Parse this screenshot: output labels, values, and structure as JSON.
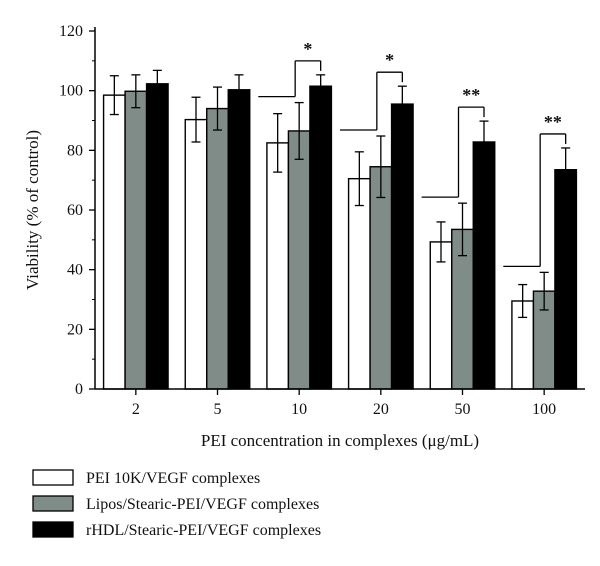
{
  "chart_data": {
    "type": "bar",
    "xlabel": "PEI concentration in complexes (μg/mL)",
    "ylabel": "Viability (% of control)",
    "ylim": [
      0,
      120
    ],
    "yticks": [
      0,
      20,
      40,
      60,
      80,
      100,
      120
    ],
    "categories": [
      "2",
      "5",
      "10",
      "20",
      "50",
      "100"
    ],
    "series": [
      {
        "name": "PEI 10K/VEGF complexes",
        "color": "#ffffff",
        "values": [
          98.5,
          90.3,
          82.5,
          70.5,
          49.3,
          29.5
        ],
        "errors": [
          6.5,
          7.5,
          9.8,
          9.0,
          6.7,
          5.5
        ]
      },
      {
        "name": "Lipos/Stearic-PEI/VEGF complexes",
        "color": "#7f8c88",
        "values": [
          99.8,
          94.0,
          86.5,
          74.5,
          53.5,
          32.8
        ],
        "errors": [
          5.5,
          7.2,
          9.5,
          10.3,
          8.8,
          6.3
        ]
      },
      {
        "name": "rHDL/Stearic-PEI/VEGF complexes",
        "color": "#000000",
        "values": [
          102.3,
          100.3,
          101.5,
          95.5,
          82.8,
          73.5
        ],
        "errors": [
          4.5,
          5.0,
          3.8,
          6.0,
          7.0,
          7.3
        ]
      }
    ],
    "significance": [
      {
        "category": "10",
        "label": "*"
      },
      {
        "category": "20",
        "label": "*"
      },
      {
        "category": "50",
        "label": "**"
      },
      {
        "category": "100",
        "label": "**"
      }
    ],
    "legend_position": "bottom-left"
  }
}
